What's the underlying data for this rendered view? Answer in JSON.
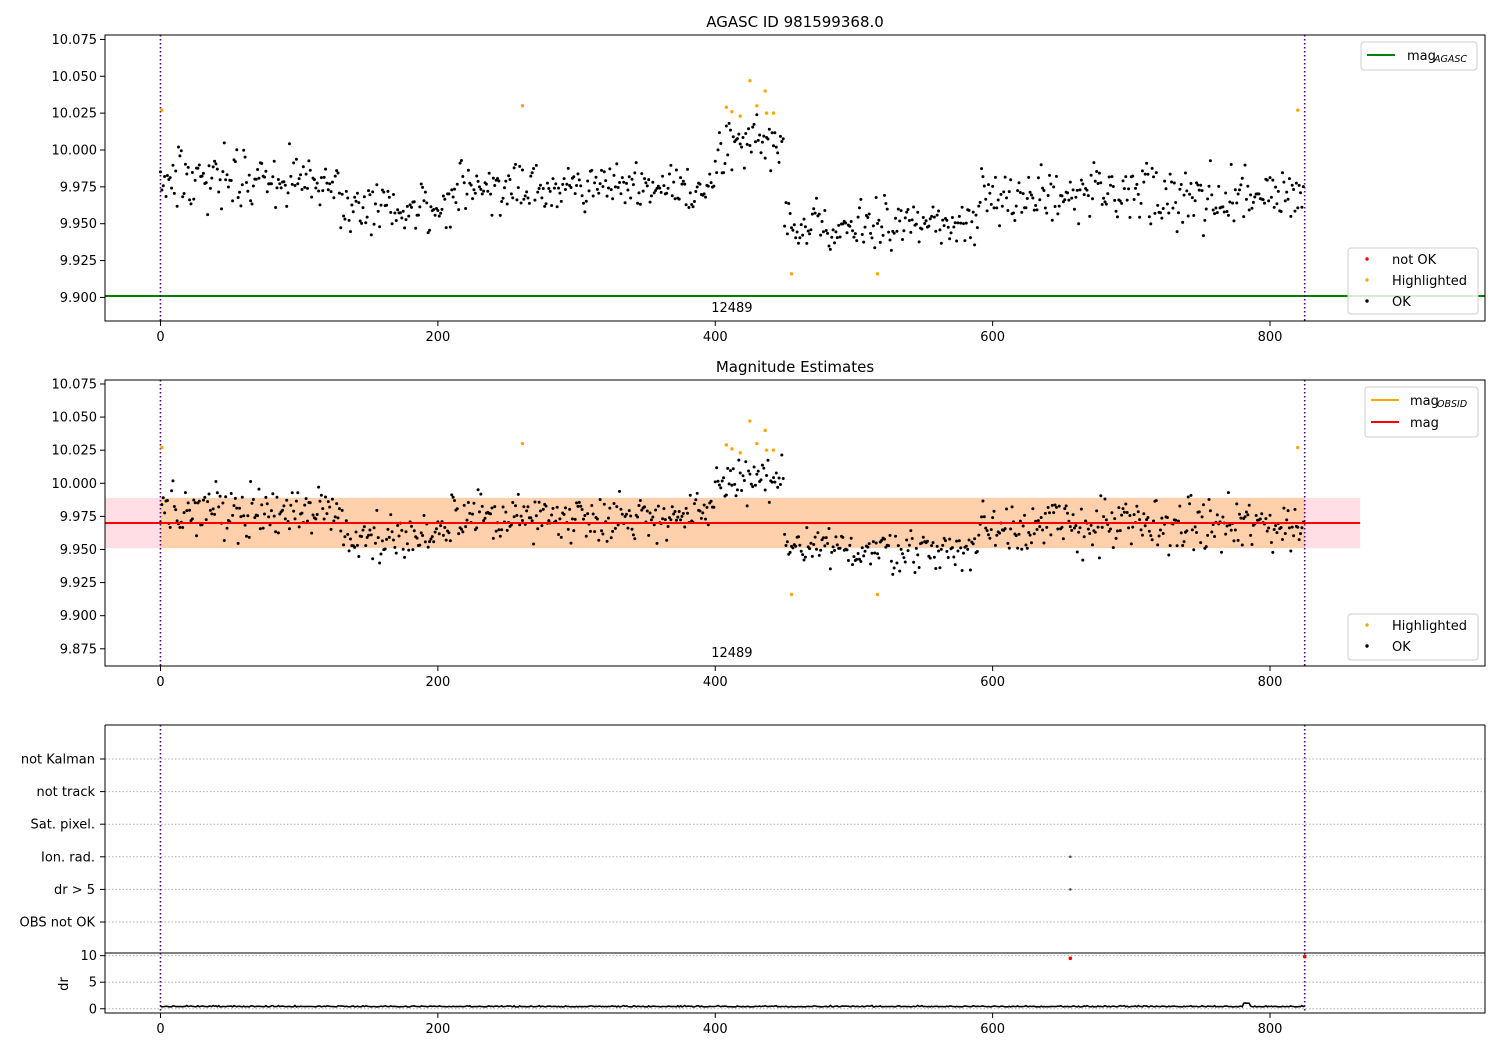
{
  "chart_data": [
    {
      "type": "scatter",
      "title": "AGASC ID 981599368.0",
      "xlim": [
        -40,
        955
      ],
      "ylim": [
        9.884,
        10.078
      ],
      "xticks": [
        "0",
        "200",
        "400",
        "600",
        "800"
      ],
      "yticks": [
        "9.900",
        "9.925",
        "9.950",
        "9.975",
        "10.000",
        "10.025",
        "10.050",
        "10.075"
      ],
      "obsid_markers": [
        0,
        825
      ],
      "obsid_label": "12489",
      "reference_lines": [
        {
          "name": "mag_AGASC",
          "y": 9.901,
          "color": "#008000"
        }
      ],
      "legend_lines": [
        {
          "label": "mag",
          "sub": "AGASC",
          "color": "#008000"
        }
      ],
      "legend_points": [
        {
          "label": "not OK",
          "color": "#ff0000"
        },
        {
          "label": "Highlighted",
          "color": "#ffa500"
        },
        {
          "label": "OK",
          "color": "#000000"
        }
      ],
      "series": [
        {
          "name": "OK",
          "color": "#000000",
          "segments": [
            {
              "x0": 0,
              "x1": 130,
              "mean": 9.98,
              "spread": 0.018
            },
            {
              "x0": 130,
              "x1": 210,
              "mean": 9.96,
              "spread": 0.016
            },
            {
              "x0": 210,
              "x1": 400,
              "mean": 9.975,
              "spread": 0.016
            },
            {
              "x0": 400,
              "x1": 450,
              "mean": 10.003,
              "spread": 0.018
            },
            {
              "x0": 450,
              "x1": 590,
              "mean": 9.95,
              "spread": 0.015
            },
            {
              "x0": 590,
              "x1": 825,
              "mean": 9.968,
              "spread": 0.02
            }
          ]
        },
        {
          "name": "Highlighted",
          "color": "#ffa500",
          "points": [
            [
              1,
              10.027
            ],
            [
              261,
              10.03
            ],
            [
              408,
              10.029
            ],
            [
              412,
              10.026
            ],
            [
              418,
              10.023
            ],
            [
              425,
              10.047
            ],
            [
              430,
              10.03
            ],
            [
              436,
              10.04
            ],
            [
              437,
              10.025
            ],
            [
              442,
              10.025
            ],
            [
              455,
              9.916
            ],
            [
              517,
              9.916
            ],
            [
              820,
              10.027
            ]
          ]
        }
      ]
    },
    {
      "type": "scatter",
      "title": "Magnitude Estimates",
      "xlim": [
        -40,
        955
      ],
      "ylim": [
        9.862,
        10.078
      ],
      "xticks": [
        "0",
        "200",
        "400",
        "600",
        "800"
      ],
      "yticks": [
        "9.875",
        "9.900",
        "9.925",
        "9.950",
        "9.975",
        "10.000",
        "10.025",
        "10.050",
        "10.075"
      ],
      "obsid_markers": [
        0,
        825
      ],
      "obsid_label": "12489",
      "reference_lines": [
        {
          "name": "mag",
          "y": 9.97,
          "color": "#ff0000",
          "x0": -40,
          "x1": 865
        }
      ],
      "bands": [
        {
          "y0": 9.951,
          "y1": 9.989,
          "x0": -40,
          "x1": 865,
          "color": "#ffc0cb",
          "opacity": 0.5
        },
        {
          "y0": 9.951,
          "y1": 9.989,
          "x0": 0,
          "x1": 825,
          "color": "#ffa500",
          "opacity": 0.25
        }
      ],
      "legend_lines": [
        {
          "label": "mag",
          "sub": "OBSID",
          "color": "#ffa500"
        },
        {
          "label": "mag",
          "sub": "",
          "color": "#ff0000"
        }
      ],
      "legend_points": [
        {
          "label": "Highlighted",
          "color": "#ffa500"
        },
        {
          "label": "OK",
          "color": "#000000"
        }
      ],
      "series": [
        {
          "name": "OK",
          "color": "#000000",
          "segments": [
            {
              "x0": 0,
              "x1": 130,
              "mean": 9.98,
              "spread": 0.018
            },
            {
              "x0": 130,
              "x1": 210,
              "mean": 9.96,
              "spread": 0.016
            },
            {
              "x0": 210,
              "x1": 400,
              "mean": 9.975,
              "spread": 0.016
            },
            {
              "x0": 400,
              "x1": 450,
              "mean": 10.003,
              "spread": 0.018
            },
            {
              "x0": 450,
              "x1": 590,
              "mean": 9.95,
              "spread": 0.015
            },
            {
              "x0": 590,
              "x1": 825,
              "mean": 9.968,
              "spread": 0.02
            }
          ]
        },
        {
          "name": "Highlighted",
          "color": "#ffa500",
          "points": [
            [
              1,
              10.027
            ],
            [
              261,
              10.03
            ],
            [
              408,
              10.029
            ],
            [
              412,
              10.026
            ],
            [
              418,
              10.023
            ],
            [
              425,
              10.047
            ],
            [
              430,
              10.03
            ],
            [
              436,
              10.04
            ],
            [
              437,
              10.025
            ],
            [
              442,
              10.025
            ],
            [
              455,
              9.916
            ],
            [
              517,
              9.916
            ],
            [
              820,
              10.027
            ]
          ]
        }
      ]
    },
    {
      "type": "scatter",
      "title": "",
      "xlim": [
        -40,
        955
      ],
      "categories": [
        "not Kalman",
        "not track",
        "Sat. pixel.",
        "Ion. rad.",
        "dr > 5",
        "OBS not OK"
      ],
      "flag_points": [
        {
          "flag": "Ion. rad.",
          "x": 656
        },
        {
          "flag": "dr > 5",
          "x": 656
        }
      ],
      "obsid_markers": [
        0,
        825
      ]
    },
    {
      "type": "scatter",
      "title": "",
      "ylabel": "dr",
      "xlim": [
        -40,
        955
      ],
      "ylim": [
        -0.8,
        10.5
      ],
      "xticks": [
        "0",
        "200",
        "400",
        "600",
        "800"
      ],
      "yticks": [
        "0",
        "5",
        "10"
      ],
      "obsid_markers": [
        0,
        825
      ],
      "series": [
        {
          "name": "dr",
          "color": "#000000",
          "segments": [
            {
              "x0": 0,
              "x1": 825,
              "mean": 0.35,
              "spread": 0.25
            }
          ]
        },
        {
          "name": "not OK",
          "color": "#ff0000",
          "points": [
            [
              656,
              9.5
            ],
            [
              825,
              9.8
            ]
          ]
        }
      ]
    }
  ]
}
